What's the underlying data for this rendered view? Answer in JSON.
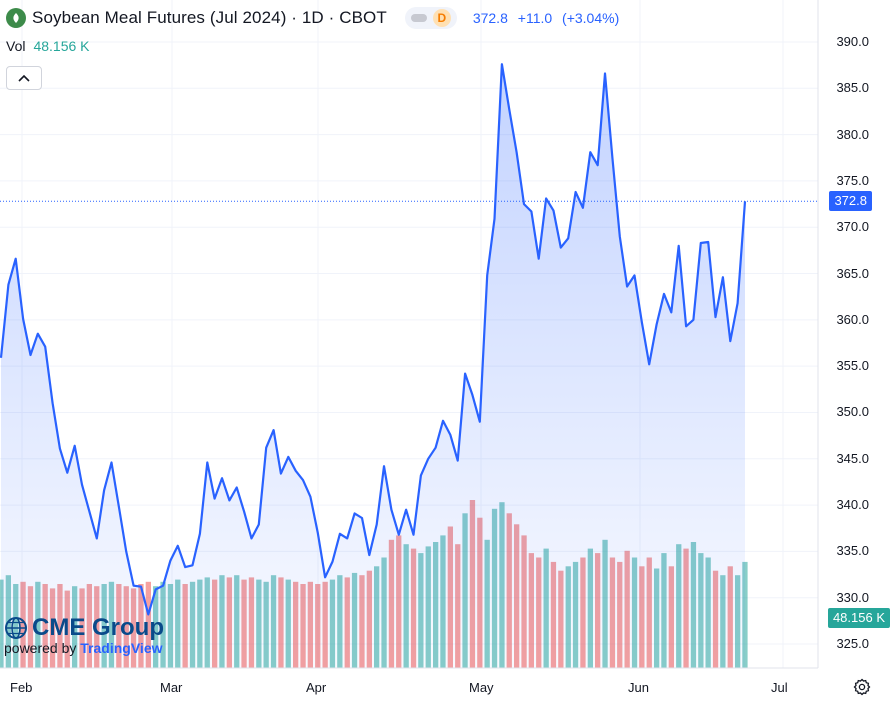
{
  "header": {
    "title": "Soybean Meal Futures (Jul 2024) · 1D · CBOT",
    "interval_badge": "D",
    "last_price": "372.8",
    "change": "+11.0",
    "change_pct": "(+3.04%)"
  },
  "volume_legend": {
    "label": "Vol",
    "value": "48.156 K"
  },
  "watermark": {
    "brand": "CME Group",
    "powered_by": "powered by",
    "platform": "TradingView"
  },
  "colors": {
    "line": "#2962ff",
    "area": "#2962ff",
    "up_volume": "#26a69a",
    "down_volume": "#ef5350",
    "vol_tag": "#26a69a"
  },
  "chart_data": {
    "type": "line",
    "y_axis": {
      "ticks": [
        "390.0",
        "385.0",
        "380.0",
        "375.0",
        "370.0",
        "365.0",
        "360.0",
        "355.0",
        "350.0",
        "345.0",
        "340.0",
        "335.0",
        "330.0",
        "325.0"
      ],
      "range": [
        322.5,
        392.5
      ]
    },
    "x_axis": {
      "ticks": [
        "Feb",
        "Mar",
        "Apr",
        "May",
        "Jun",
        "Jul"
      ]
    },
    "last_price_tag": "372.8",
    "volume_tag": "48.156 K",
    "grid": true,
    "series": [
      {
        "values": [
          355.9,
          363.8,
          366.6,
          360.1,
          356.2,
          358.5,
          357.1,
          351.0,
          346.1,
          343.5,
          346.4,
          342.2,
          339.3,
          336.4,
          341.6,
          344.6,
          339.8,
          335.0,
          331.3,
          331.2,
          328.2,
          330.9,
          331.3,
          334.0,
          335.6,
          333.3,
          333.5,
          336.9,
          344.6,
          340.7,
          342.9,
          340.5,
          341.9,
          339.3,
          336.4,
          337.9,
          346.2,
          348.1,
          343.4,
          345.2,
          343.7,
          342.7,
          340.9,
          337.0,
          332.2,
          333.9,
          336.9,
          336.4,
          339.1,
          338.6,
          334.6,
          337.9,
          344.2,
          339.5,
          336.8,
          339.5,
          336.8,
          343.2,
          345.0,
          346.2,
          349.1,
          347.6,
          344.8,
          354.2,
          351.9,
          349.0,
          364.8,
          370.9,
          387.6,
          382.7,
          378.1,
          372.5,
          371.7,
          366.6,
          373.1,
          371.8,
          367.8,
          368.8,
          373.8,
          372.1,
          378.1,
          376.7,
          386.6,
          377.5,
          369.0,
          363.6,
          364.8,
          359.7,
          355.2,
          359.5,
          362.8,
          360.8,
          368.0,
          359.3,
          360.0,
          368.3,
          368.4,
          360.3,
          364.6,
          357.7,
          361.8,
          372.8
        ]
      }
    ],
    "volume_k": [
      40,
      42,
      38,
      39,
      37,
      39,
      38,
      36,
      38,
      35,
      37,
      36,
      38,
      37,
      38,
      39,
      38,
      37,
      36,
      38,
      39,
      37,
      39,
      38,
      40,
      38,
      39,
      40,
      41,
      40,
      42,
      41,
      42,
      40,
      41,
      40,
      39,
      42,
      41,
      40,
      39,
      38,
      39,
      38,
      39,
      40,
      42,
      41,
      43,
      42,
      44,
      46,
      50,
      58,
      60,
      56,
      54,
      52,
      55,
      57,
      60,
      64,
      56,
      70,
      76,
      68,
      58,
      72,
      75,
      70,
      65,
      60,
      52,
      50,
      54,
      48,
      44,
      46,
      48,
      50,
      54,
      52,
      58,
      50,
      48,
      53,
      50,
      46,
      50,
      45,
      52,
      46,
      56,
      54,
      57,
      52,
      50,
      44,
      42,
      46,
      42,
      48
    ]
  }
}
